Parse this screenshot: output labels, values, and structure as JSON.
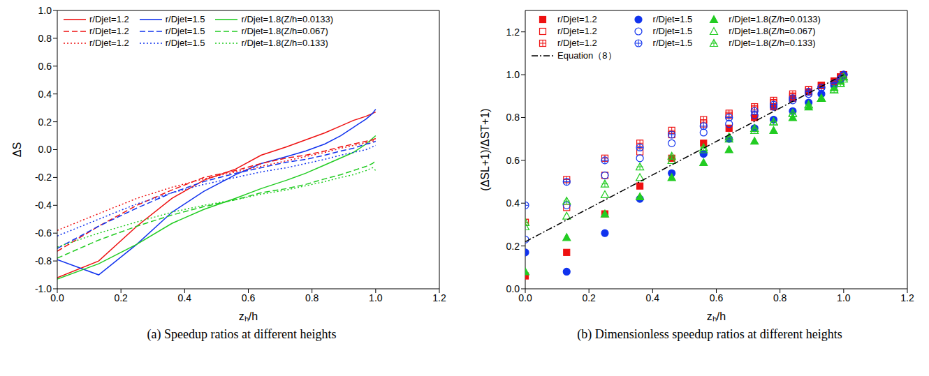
{
  "chart_data": [
    {
      "type": "line",
      "title": "(a) Speedup ratios at different heights",
      "xlabel": "zₕ/h",
      "ylabel": "ΔS",
      "x": [
        0,
        0.13,
        0.25,
        0.36,
        0.46,
        0.56,
        0.64,
        0.72,
        0.78,
        0.84,
        0.89,
        0.93,
        0.97,
        0.99,
        1.0
      ],
      "xlim": [
        0,
        1.2
      ],
      "xticks": [
        {
          "value": 0,
          "label": "0.0"
        },
        0.2,
        0.4,
        0.6,
        0.8,
        {
          "value": 1,
          "label": "1.0"
        },
        1.2
      ],
      "ylim": [
        -1,
        1
      ],
      "yticks": [
        {
          "value": -1,
          "label": "-1.0"
        },
        -0.8,
        -0.6,
        -0.4,
        -0.2,
        {
          "value": 0,
          "label": "0.0"
        },
        0.2,
        0.4,
        0.6,
        0.8,
        {
          "value": 1,
          "label": "1.0"
        }
      ],
      "legend": "upper left",
      "series": [
        {
          "name": "r/Djet=1.2",
          "color": "#ee1111",
          "line_style": "solid",
          "values": [
            -0.92,
            -0.8,
            -0.55,
            -0.35,
            -0.22,
            -0.14,
            -0.04,
            0.02,
            0.07,
            0.12,
            0.17,
            0.21,
            0.24,
            0.26,
            0.27
          ]
        },
        {
          "name": "r/Djet=1.5",
          "color": "#1133ee",
          "line_style": "solid",
          "values": [
            -0.79,
            -0.9,
            -0.68,
            -0.45,
            -0.3,
            -0.18,
            -0.1,
            -0.05,
            -0.01,
            0.04,
            0.1,
            0.16,
            0.22,
            0.26,
            0.29
          ]
        },
        {
          "name": "r/Djet=1.8(Z/h=0.0133)",
          "color": "#22cc22",
          "line_style": "solid",
          "values": [
            -0.93,
            -0.82,
            -0.68,
            -0.53,
            -0.43,
            -0.35,
            -0.28,
            -0.22,
            -0.17,
            -0.11,
            -0.06,
            -0.02,
            0.04,
            0.08,
            0.1
          ]
        },
        {
          "name": "r/Djet=1.2",
          "color": "#ee1111",
          "line_style": "dashed",
          "values": [
            -0.73,
            -0.55,
            -0.4,
            -0.29,
            -0.2,
            -0.15,
            -0.1,
            -0.06,
            -0.04,
            -0.01,
            0.02,
            0.04,
            0.06,
            0.07,
            0.08
          ]
        },
        {
          "name": "r/Djet=1.5",
          "color": "#1133ee",
          "line_style": "dashed",
          "values": [
            -0.71,
            -0.55,
            -0.42,
            -0.31,
            -0.23,
            -0.17,
            -0.13,
            -0.09,
            -0.07,
            -0.04,
            -0.01,
            0.01,
            0.04,
            0.05,
            0.06
          ]
        },
        {
          "name": "r/Djet=1.8(Z/h=0.067)",
          "color": "#22cc22",
          "line_style": "dashed",
          "values": [
            -0.78,
            -0.65,
            -0.55,
            -0.47,
            -0.41,
            -0.36,
            -0.31,
            -0.28,
            -0.25,
            -0.21,
            -0.18,
            -0.15,
            -0.12,
            -0.1,
            -0.08
          ]
        },
        {
          "name": "r/Djet=1.2",
          "color": "#ee1111",
          "line_style": "dotted",
          "values": [
            -0.58,
            -0.46,
            -0.35,
            -0.27,
            -0.21,
            -0.16,
            -0.12,
            -0.08,
            -0.05,
            -0.02,
            0.01,
            0.03,
            0.05,
            0.06,
            0.07
          ]
        },
        {
          "name": "r/Djet=1.5",
          "color": "#1133ee",
          "line_style": "dotted",
          "values": [
            -0.62,
            -0.5,
            -0.39,
            -0.31,
            -0.25,
            -0.2,
            -0.16,
            -0.13,
            -0.1,
            -0.07,
            -0.04,
            -0.02,
            0.0,
            0.02,
            0.03
          ]
        },
        {
          "name": "r/Djet=1.8(Z/h=0.133)",
          "color": "#22cc22",
          "line_style": "dotted",
          "values": [
            -0.7,
            -0.6,
            -0.52,
            -0.45,
            -0.4,
            -0.36,
            -0.32,
            -0.29,
            -0.26,
            -0.23,
            -0.2,
            -0.18,
            -0.15,
            -0.13,
            -0.15
          ]
        }
      ]
    },
    {
      "type": "scatter",
      "title": "(b) Dimensionless speedup ratios at different heights",
      "xlabel": "zₕ/h",
      "ylabel": "(ΔSL+1)/ΔST+1)",
      "x": [
        0,
        0.13,
        0.25,
        0.36,
        0.46,
        0.56,
        0.64,
        0.72,
        0.78,
        0.84,
        0.89,
        0.93,
        0.97,
        0.99,
        1.0
      ],
      "xlim": [
        0,
        1.2
      ],
      "xticks": [
        {
          "value": 0,
          "label": "0.0"
        },
        0.2,
        0.4,
        0.6,
        0.8,
        {
          "value": 1,
          "label": "1.0"
        },
        1.2
      ],
      "ylim": [
        0,
        1.3
      ],
      "yticks": [
        {
          "value": 0,
          "label": "0.0"
        },
        0.2,
        0.4,
        0.6,
        0.8,
        {
          "value": 1,
          "label": "1.0"
        },
        1.2
      ],
      "legend": "upper left",
      "series": [
        {
          "name": "r/Djet=1.2",
          "color": "#ee1111",
          "marker": "square",
          "values": [
            0.06,
            0.17,
            0.35,
            0.48,
            0.61,
            0.68,
            0.75,
            0.8,
            0.85,
            0.89,
            0.92,
            0.95,
            0.97,
            0.99,
            1.0
          ]
        },
        {
          "name": "r/Djet=1.5",
          "color": "#1133ee",
          "marker": "circle",
          "values": [
            0.17,
            0.08,
            0.26,
            0.42,
            0.54,
            0.63,
            0.7,
            0.75,
            0.79,
            0.83,
            0.87,
            0.91,
            0.95,
            0.98,
            1.0
          ]
        },
        {
          "name": "r/Djet=1.8(Z/h=0.0133)",
          "color": "#22cc22",
          "marker": "triangle",
          "values": [
            0.08,
            0.24,
            0.35,
            0.43,
            0.52,
            0.59,
            0.65,
            0.69,
            0.74,
            0.8,
            0.85,
            0.89,
            0.94,
            0.97,
            0.99
          ]
        },
        {
          "name": "r/Djet=1.2",
          "color": "#ee1111",
          "marker": "square_open",
          "values": [
            0.31,
            0.38,
            0.53,
            0.64,
            0.72,
            0.77,
            0.81,
            0.84,
            0.87,
            0.9,
            0.93,
            0.95,
            0.97,
            0.99,
            1.0
          ]
        },
        {
          "name": "r/Djet=1.5",
          "color": "#1133ee",
          "marker": "circle_open",
          "values": [
            0.23,
            0.39,
            0.53,
            0.61,
            0.68,
            0.73,
            0.77,
            0.81,
            0.85,
            0.88,
            0.91,
            0.94,
            0.96,
            0.98,
            1.0
          ]
        },
        {
          "name": "r/Djet=1.8(Z/h=0.067)",
          "color": "#22cc22",
          "marker": "triangle_open",
          "values": [
            0.29,
            0.34,
            0.44,
            0.52,
            0.6,
            0.65,
            0.7,
            0.74,
            0.78,
            0.82,
            0.86,
            0.89,
            0.93,
            0.96,
            0.98
          ]
        },
        {
          "name": "r/Djet=1.2",
          "color": "#ee1111",
          "marker": "square_plus",
          "values": [
            0.31,
            0.51,
            0.61,
            0.68,
            0.74,
            0.79,
            0.82,
            0.85,
            0.88,
            0.91,
            0.93,
            0.95,
            0.97,
            0.99,
            1.0
          ]
        },
        {
          "name": "r/Djet=1.5",
          "color": "#1133ee",
          "marker": "circle_plus",
          "values": [
            0.39,
            0.5,
            0.6,
            0.66,
            0.72,
            0.76,
            0.8,
            0.83,
            0.86,
            0.89,
            0.92,
            0.94,
            0.96,
            0.98,
            1.0
          ]
        },
        {
          "name": "r/Djet=1.8(Z/h=0.133)",
          "color": "#22cc22",
          "marker": "triangle_plus",
          "values": [
            0.31,
            0.41,
            0.49,
            0.57,
            0.62,
            0.66,
            0.71,
            0.75,
            0.78,
            0.82,
            0.86,
            0.89,
            0.93,
            0.96,
            0.99
          ]
        },
        {
          "name": "Equation（8）",
          "type": "line",
          "color": "#000000",
          "line_style": "dashdot",
          "x": [
            0,
            1.0
          ],
          "values": [
            0.22,
            1.0
          ]
        }
      ]
    }
  ]
}
